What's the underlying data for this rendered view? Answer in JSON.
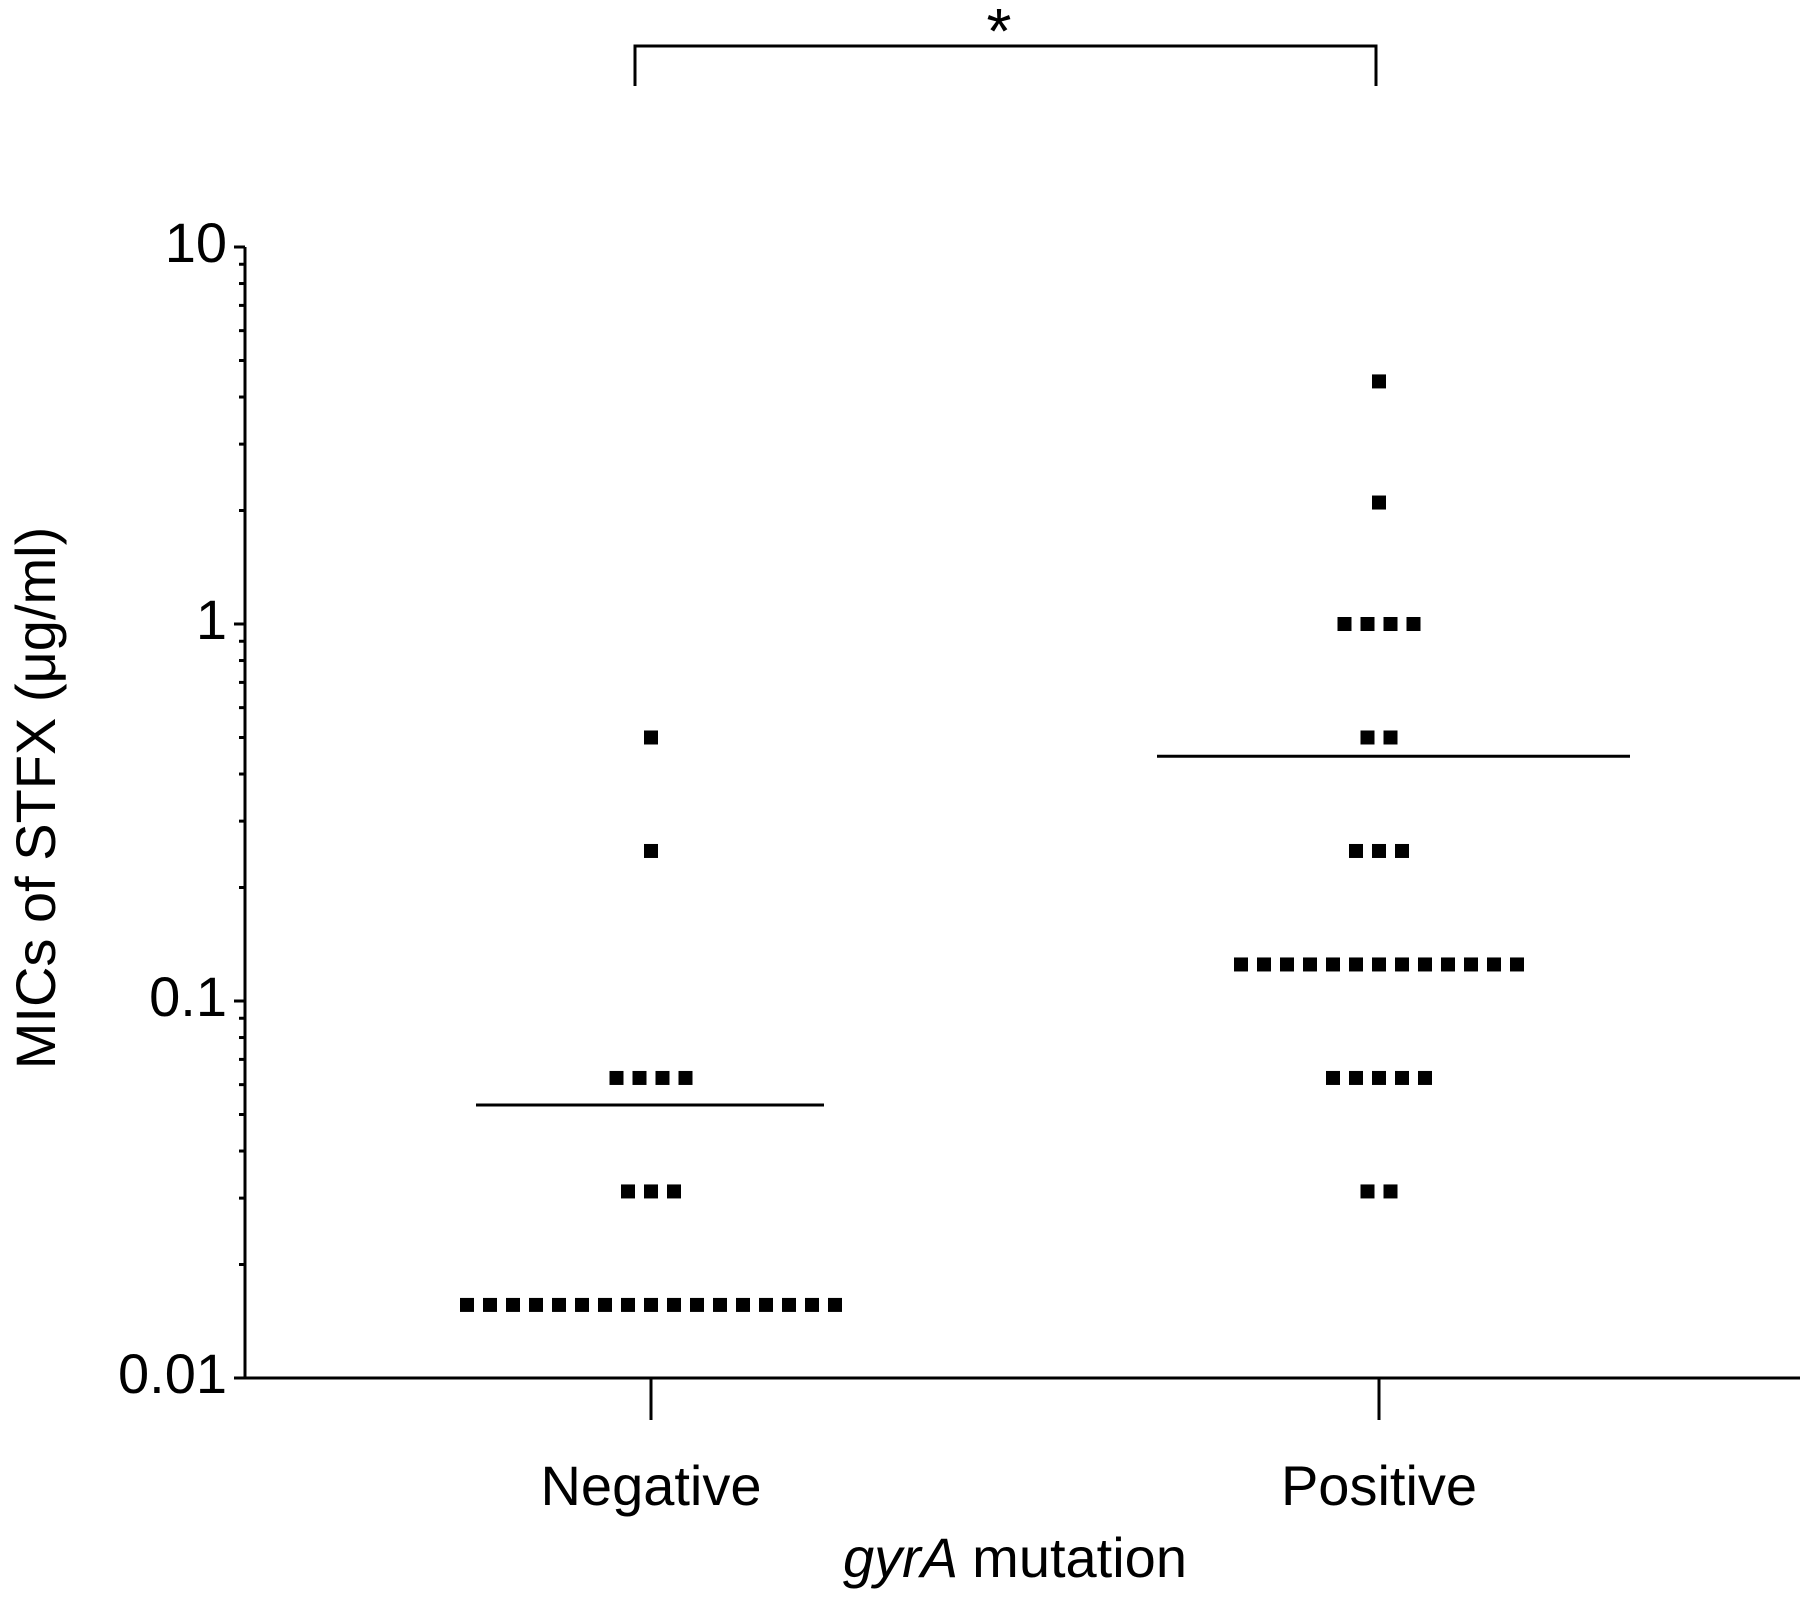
{
  "chart_data": {
    "type": "dot",
    "categories": [
      "Negative",
      "Positive"
    ],
    "ylabel": "MICs of STFX (μg/ml)",
    "xlabel": {
      "italic": "gyrA",
      "text": "mutation"
    },
    "annotation": "*",
    "log_scale": true,
    "color": "#000000",
    "ylim": [
      0.01,
      10
    ],
    "yticks": [
      10,
      1,
      0.1,
      0.01
    ],
    "minor_yticks": [
      0.02,
      0.03,
      0.04,
      0.05,
      0.06,
      0.07,
      0.08,
      0.09,
      0.2,
      0.3,
      0.4,
      0.5,
      0.6,
      0.7,
      0.8,
      0.9,
      2,
      3,
      4,
      5,
      6,
      7,
      8,
      9
    ],
    "points": [
      [
        0.5,
        0.25,
        0.0625,
        0.0625,
        0.0625,
        0.0625,
        0.03125,
        0.03125,
        0.03125,
        0.015625,
        0.015625,
        0.015625,
        0.015625,
        0.015625,
        0.015625,
        0.015625,
        0.015625,
        0.015625,
        0.015625,
        0.015625,
        0.015625,
        0.015625,
        0.015625,
        0.015625,
        0.015625,
        0.015625
      ],
      [
        4.4,
        2.1,
        1,
        1,
        1,
        1,
        0.5,
        0.5,
        0.25,
        0.25,
        0.25,
        0.125,
        0.125,
        0.125,
        0.125,
        0.125,
        0.125,
        0.125,
        0.125,
        0.125,
        0.125,
        0.125,
        0.125,
        0.125,
        0.0625,
        0.0625,
        0.0625,
        0.0625,
        0.0625,
        0.03125,
        0.03125
      ]
    ],
    "means": [
      0.053,
      0.446
    ]
  }
}
